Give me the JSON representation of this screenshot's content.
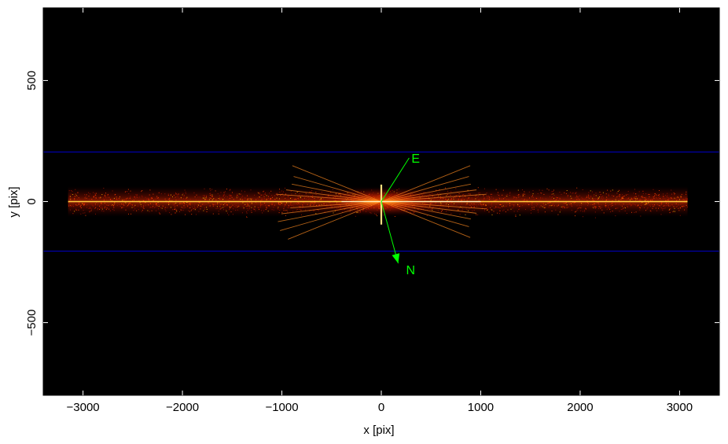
{
  "chart_data": {
    "type": "heatmap",
    "title": "",
    "xlabel": "x [pix]",
    "ylabel": "y [pix]",
    "xlim": [
      -3400,
      3400
    ],
    "ylim": [
      -800,
      800
    ],
    "x_ticks": [
      -3000,
      -2000,
      -1000,
      0,
      1000,
      2000,
      3000
    ],
    "x_tick_labels": [
      "−3000",
      "−2000",
      "−1000",
      "0",
      "1000",
      "2000",
      "3000"
    ],
    "y_ticks": [
      -500,
      0,
      500
    ],
    "y_tick_labels": [
      "−500",
      "0",
      "500"
    ],
    "colormap": "black-red-yellow-white (heat)",
    "background_color": "#000000",
    "grid": false,
    "features": {
      "dispersed_spectrum": {
        "x_range": [
          -3150,
          3080
        ],
        "y_center": 0,
        "halo_half_height": 60
      },
      "zeroth_order": {
        "x": 0,
        "y_range": [
          -95,
          70
        ]
      },
      "extraction_region": {
        "y_upper": 205,
        "y_lower": -205,
        "color": "#0000cc"
      }
    },
    "compass": {
      "labels": [
        "E",
        "N"
      ],
      "origin": [
        0,
        0
      ],
      "east_tip": [
        280,
        180
      ],
      "north_tip": [
        170,
        -255
      ],
      "color": "#00ff00"
    }
  }
}
